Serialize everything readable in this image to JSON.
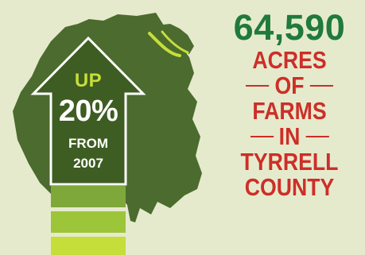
{
  "colors": {
    "background": "#e6eacd",
    "map": "#4c6b2e",
    "arrow": "#3e5d22",
    "arrow_outline": "#ffffff",
    "accent_lime": "#c6de3a",
    "number_green": "#1f7a3c",
    "caption_red": "#cc2f27"
  },
  "arrow": {
    "up_text": "UP",
    "percent_text": "20%",
    "from_text": "FROM",
    "year_text": "2007",
    "stack_bar_colors": [
      "#7fa83a",
      "#9cc53a",
      "#c6de3a"
    ]
  },
  "headline": {
    "number": "64,590",
    "lines": [
      "ACRES",
      "OF",
      "FARMS",
      "IN",
      "TYRRELL",
      "COUNTY"
    ]
  }
}
